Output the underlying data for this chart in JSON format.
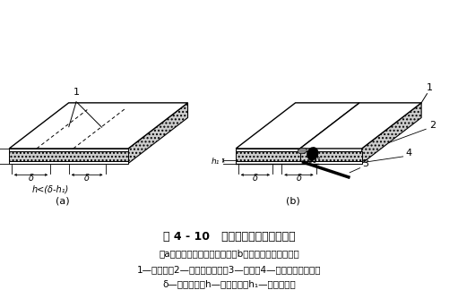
{
  "title_main": "图 4 - 10   风管侧板阶梯线切割示意",
  "caption1": "（a）板材阶梯线切割示意；（b）用刁刀切至尺寸示意",
  "caption2": "1—阶梯线；2—待去除夹芯层；3—刁刀；4—风管板外覆面层；",
  "caption3": "δ—风管板厘；h—切割深度；h₁—覆面层厘度",
  "label_a": "(a)",
  "label_b": "(b)",
  "bg_color": "#ffffff"
}
